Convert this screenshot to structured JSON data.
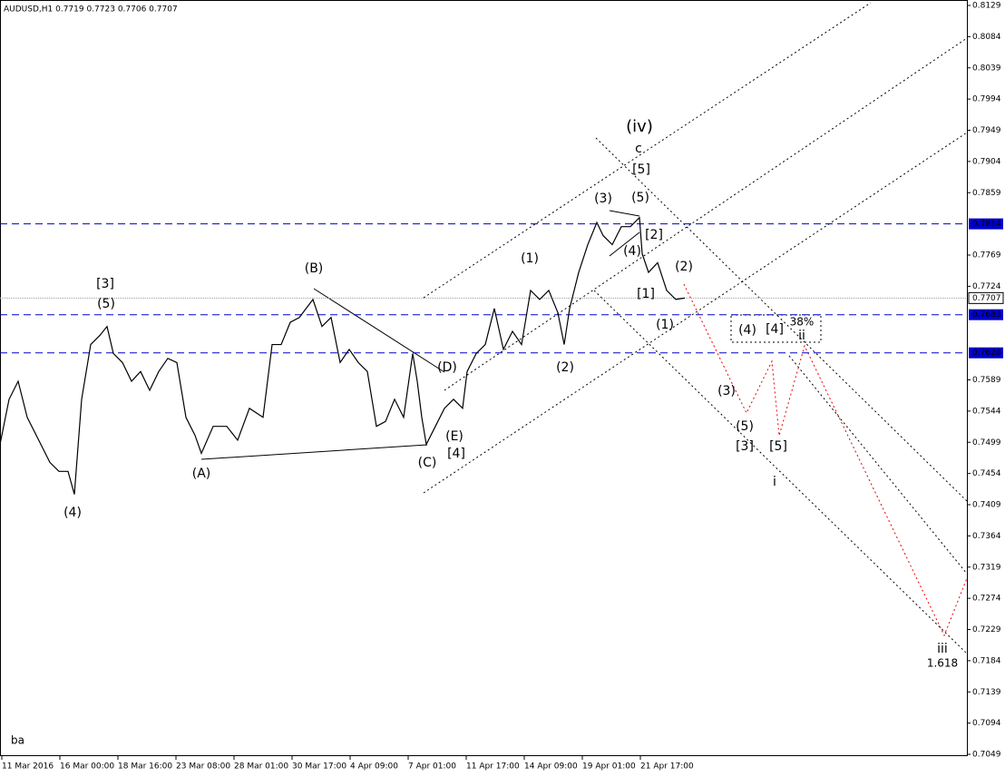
{
  "chart_data": {
    "type": "line",
    "title": "AUDUSD,H1  0.7719 0.7723 0.7706 0.7707",
    "footer": "ba",
    "color": "#000000",
    "x": [
      0,
      10,
      20,
      30,
      45,
      55,
      65,
      75,
      82,
      90,
      100,
      110,
      118,
      125,
      135,
      145,
      155,
      165,
      175,
      185,
      195,
      205,
      215,
      222,
      235,
      250,
      262,
      275,
      290,
      300,
      310,
      320,
      330,
      345,
      355,
      365,
      375,
      385,
      395,
      405,
      415,
      425,
      435,
      445,
      455,
      460,
      465,
      470,
      480,
      490,
      500,
      510,
      515,
      525,
      535,
      545,
      555,
      565,
      575,
      585,
      595,
      605,
      615,
      622,
      628,
      638,
      648,
      658,
      665,
      675,
      685,
      695,
      705,
      708,
      715,
      725,
      735,
      745,
      755
    ],
    "values": [
      0.7496,
      0.7561,
      0.7587,
      0.7535,
      0.7496,
      0.747,
      0.7457,
      0.7457,
      0.7424,
      0.7561,
      0.764,
      0.7653,
      0.7666,
      0.7627,
      0.7614,
      0.7587,
      0.7601,
      0.7574,
      0.7601,
      0.762,
      0.7614,
      0.7535,
      0.7509,
      0.7483,
      0.7522,
      0.7522,
      0.7502,
      0.7548,
      0.7535,
      0.764,
      0.764,
      0.7672,
      0.7679,
      0.7705,
      0.7666,
      0.7679,
      0.7614,
      0.7633,
      0.7614,
      0.7601,
      0.7522,
      0.7529,
      0.7561,
      0.7535,
      0.7627,
      0.7587,
      0.7535,
      0.7496,
      0.7522,
      0.7548,
      0.7561,
      0.7548,
      0.7601,
      0.7627,
      0.764,
      0.7692,
      0.7633,
      0.7659,
      0.764,
      0.7718,
      0.7705,
      0.7718,
      0.7686,
      0.764,
      0.7692,
      0.7744,
      0.7784,
      0.7816,
      0.7797,
      0.7784,
      0.781,
      0.781,
      0.7823,
      0.7771,
      0.7744,
      0.7758,
      0.7718,
      0.7705,
      0.7707
    ],
    "xlim": [
      0,
      1066
    ],
    "xticks": [
      {
        "value": 2,
        "label": "11 Mar 2016"
      },
      {
        "value": 66,
        "label": "16 Mar 00:00"
      },
      {
        "value": 130,
        "label": "18 Mar 16:00"
      },
      {
        "value": 194,
        "label": "23 Mar 08:00"
      },
      {
        "value": 258,
        "label": "28 Mar 01:00"
      },
      {
        "value": 322,
        "label": "30 Mar 17:00"
      },
      {
        "value": 386,
        "label": "4 Apr 09:00"
      },
      {
        "value": 450,
        "label": "7 Apr 01:00"
      },
      {
        "value": 514,
        "label": "11 Apr 17:00"
      },
      {
        "value": 578,
        "label": "14 Apr 09:00"
      },
      {
        "value": 642,
        "label": "19 Apr 01:00"
      },
      {
        "value": 706,
        "label": "21 Apr 17:00"
      }
    ],
    "ylim": [
      0.7049,
      0.8129
    ],
    "yticks": [
      0.8129,
      0.8084,
      0.8039,
      0.7994,
      0.7949,
      0.7904,
      0.7859,
      0.7769,
      0.7724,
      0.7589,
      0.7544,
      0.7499,
      0.7454,
      0.7409,
      0.7364,
      0.7319,
      0.7274,
      0.7229,
      0.7184,
      0.7139,
      0.7094,
      0.7049
    ],
    "levels": [
      0.7814,
      0.7683,
      0.7628
    ],
    "level_color": "#0000cc",
    "current_price": 0.7707,
    "annotations": [
      {
        "text": "[3]",
        "color": "#e00000"
      },
      {
        "text": "(5)",
        "color": "#2e8b22"
      },
      {
        "text": "(4)",
        "color": "#2e8b22"
      },
      {
        "text": "(A)",
        "color": "#2e8b22"
      },
      {
        "text": "(B)",
        "color": "#2e8b22"
      },
      {
        "text": "(C)",
        "color": "#2e8b22"
      },
      {
        "text": "(D)",
        "color": "#2e8b22"
      },
      {
        "text": "(E)",
        "color": "#2e8b22"
      },
      {
        "text": "[4]",
        "color": "#e00000"
      },
      {
        "text": "(1)",
        "color": "#2e8b22"
      },
      {
        "text": "(2)",
        "color": "#2e8b22"
      },
      {
        "text": "(3)",
        "color": "#2e8b22"
      },
      {
        "text": "(5)",
        "color": "#2e8b22"
      },
      {
        "text": "(4)",
        "color": "#2e8b22"
      },
      {
        "text": "[5]",
        "color": "#e00000"
      },
      {
        "text": "c",
        "color": "#0000cc"
      },
      {
        "text": "(iv)",
        "color": "#2e8b22"
      },
      {
        "text": "[2]",
        "color": "#e00000"
      },
      {
        "text": "[1]",
        "color": "#e00000"
      },
      {
        "text": "(2)",
        "color": "#2e8b22"
      },
      {
        "text": "(1)",
        "color": "#2e8b22"
      },
      {
        "text": "(4)",
        "color": "#2e8b22"
      },
      {
        "text": "[4]",
        "color": "#e00000"
      },
      {
        "text": "38%",
        "color": "#000000"
      },
      {
        "text": "ii",
        "color": "#0000cc"
      },
      {
        "text": "(3)",
        "color": "#2e8b22"
      },
      {
        "text": "(5)",
        "color": "#2e8b22"
      },
      {
        "text": "[3]",
        "color": "#e00000"
      },
      {
        "text": "[5]",
        "color": "#e00000"
      },
      {
        "text": "i",
        "color": "#0000cc"
      },
      {
        "text": "iii",
        "color": "#0000cc"
      },
      {
        "text": "1.618",
        "color": "#000000"
      }
    ]
  }
}
